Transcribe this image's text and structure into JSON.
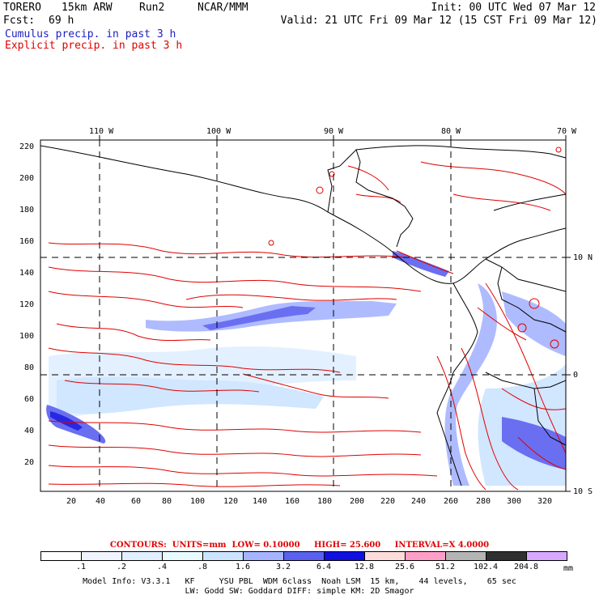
{
  "header": {
    "model": "TORERO",
    "resolution": "15km ARW",
    "run": "Run2",
    "org": "NCAR/MMM",
    "init": "Init: 00 UTC Wed 07 Mar 12",
    "fcst_label": "Fcst:",
    "fcst_value": "69 h",
    "valid": "Valid: 21 UTC Fri 09 Mar 12 (15 CST Fri 09 Mar 12)",
    "field1": "Cumulus precip. in past 3 h",
    "field2": "Explicit precip. in past 3 h",
    "field1_color": "#2020c0",
    "field2_color": "#e00000"
  },
  "map": {
    "top_lon_labels": [
      "110 W",
      "100 W",
      "90 W",
      "80 W",
      "70 W"
    ],
    "right_lat_labels": [
      "10 N",
      "0",
      "10 S"
    ],
    "left_axis_labels": [
      "220",
      "200",
      "180",
      "160",
      "140",
      "120",
      "100",
      "80",
      "60",
      "40",
      "20"
    ],
    "bottom_axis_labels": [
      "20",
      "40",
      "60",
      "80",
      "100",
      "120",
      "140",
      "160",
      "180",
      "200",
      "220",
      "240",
      "260",
      "280",
      "300",
      "320"
    ]
  },
  "contours": {
    "label": "CONTOURS:",
    "units": "UNITS=mm",
    "low": "LOW= 0.10000",
    "high": "HIGH= 25.600",
    "interval": "INTERVAL=X 4.0000"
  },
  "colorbar": {
    "labels": [
      ".1",
      ".2",
      ".4",
      ".8",
      "1.6",
      "3.2",
      "6.4",
      "12.8",
      "25.6",
      "51.2",
      "102.4",
      "204.8"
    ],
    "unit": "mm",
    "colors": [
      "#ffffff",
      "#f0f4ff",
      "#e1efff",
      "#e8fbff",
      "#cde4ff",
      "#a6b4ff",
      "#5a60f0",
      "#1010e0",
      "#ffdcdc",
      "#ff9fc8",
      "#b4b4b4",
      "#303030",
      "#d8a8ff"
    ]
  },
  "model_info": {
    "line1": "Model Info: V3.3.1   KF     YSU PBL  WDM 6class  Noah LSM  15 km,    44 levels,    65 sec",
    "line2": "LW: Godd SW: Goddard DIFF: simple KM: 2D Smagor"
  }
}
